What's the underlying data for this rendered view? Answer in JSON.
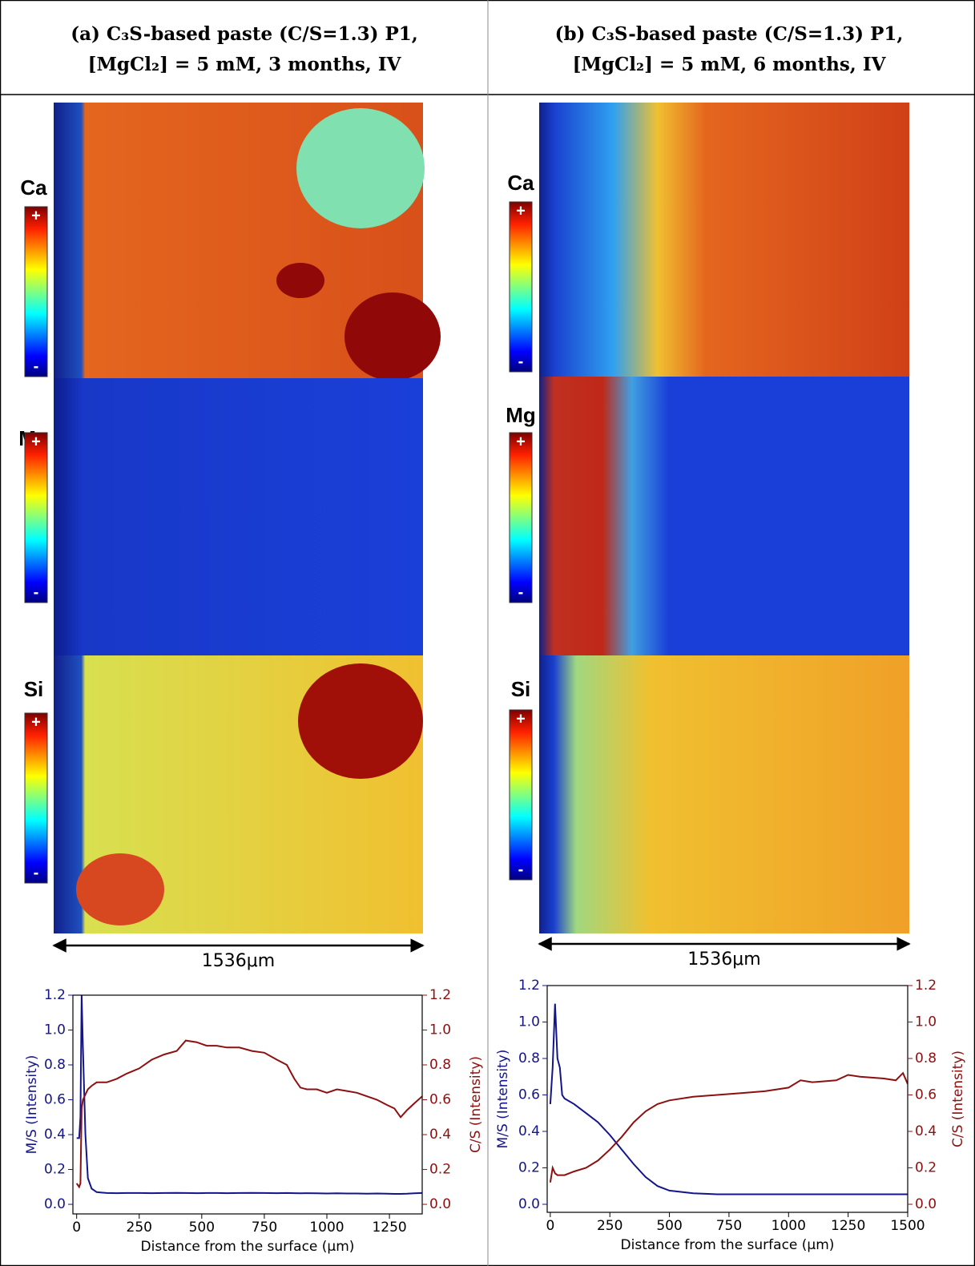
{
  "panels": [
    {
      "header": [
        "(a) C₃S-based paste (C/S=1.3) P1,",
        "[MgCl₂] = 5 mM,  3 months, IV"
      ],
      "maps": [
        {
          "element": "Ca",
          "max": "+",
          "min": "-"
        },
        {
          "element": "Mg",
          "max": "+",
          "min": "-"
        },
        {
          "element": "Si",
          "max": "+",
          "min": "-"
        }
      ],
      "scale_bar": "1536μm"
    },
    {
      "header": [
        "(b) C₃S-based paste (C/S=1.3) P1,",
        "[MgCl₂] = 5 mM,  6 months, IV"
      ],
      "maps": [
        {
          "element": "Ca",
          "max": "+",
          "min": "-"
        },
        {
          "element": "Mg",
          "max": "+",
          "min": "-"
        },
        {
          "element": "Si",
          "max": "+",
          "min": "-"
        }
      ],
      "scale_bar": "1536μm"
    }
  ],
  "chart_data": [
    {
      "type": "line",
      "xlabel": "Distance from the surface (μm)",
      "ylabel": "M/S (Intensity)",
      "y2label": "C/S (Intensity)",
      "x": [
        0,
        10,
        15,
        20,
        25,
        35,
        45,
        60,
        80,
        120,
        160,
        200,
        250,
        300,
        350,
        400,
        436,
        480,
        520,
        560,
        600,
        650,
        700,
        750,
        800,
        840,
        870,
        894,
        920,
        960,
        1000,
        1040,
        1080,
        1120,
        1160,
        1200,
        1240,
        1270,
        1295,
        1320,
        1350,
        1381
      ],
      "series": [
        {
          "color": "#14148c",
          "values": [
            0.38,
            0.38,
            0.5,
            1.2,
            0.9,
            0.4,
            0.15,
            0.09,
            0.07,
            0.065,
            0.064,
            0.065,
            0.065,
            0.064,
            0.065,
            0.066,
            0.065,
            0.064,
            0.065,
            0.065,
            0.064,
            0.065,
            0.066,
            0.065,
            0.064,
            0.065,
            0.064,
            0.063,
            0.064,
            0.063,
            0.062,
            0.063,
            0.062,
            0.062,
            0.061,
            0.062,
            0.061,
            0.06,
            0.06,
            0.061,
            0.063,
            0.065
          ]
        },
        {
          "color": "#8c1010",
          "axis": "y2",
          "values": [
            0.12,
            0.1,
            0.12,
            0.55,
            0.6,
            0.63,
            0.66,
            0.68,
            0.7,
            0.7,
            0.72,
            0.75,
            0.78,
            0.83,
            0.86,
            0.88,
            0.94,
            0.93,
            0.91,
            0.91,
            0.9,
            0.9,
            0.88,
            0.87,
            0.83,
            0.8,
            0.72,
            0.67,
            0.66,
            0.66,
            0.64,
            0.66,
            0.65,
            0.64,
            0.62,
            0.6,
            0.57,
            0.55,
            0.5,
            0.54,
            0.58,
            0.62
          ]
        }
      ],
      "xlim": [
        -15,
        1381
      ],
      "ylim": [
        -0.055,
        1.2
      ],
      "y2lim": [
        -0.055,
        1.2
      ],
      "xticks": [
        0,
        250,
        500,
        750,
        1000,
        1250
      ],
      "yticks": [
        {
          "value": 0,
          "label": "0.0"
        },
        0.2,
        0.4,
        0.6,
        0.8,
        {
          "value": 1,
          "label": "1.0"
        },
        1.2
      ],
      "y2ticks": [
        {
          "value": 0,
          "label": "0.0"
        },
        0.2,
        0.4,
        0.6,
        0.8,
        {
          "value": 1,
          "label": "1.0"
        },
        1.2
      ]
    },
    {
      "type": "line",
      "xlabel": "Distance from the surface (μm)",
      "ylabel": "M/S (Intensity)",
      "y2label": "C/S (Intensity)",
      "x": [
        0,
        10,
        20,
        30,
        40,
        50,
        60,
        100,
        150,
        200,
        250,
        300,
        350,
        400,
        450,
        500,
        600,
        700,
        800,
        900,
        1000,
        1050,
        1100,
        1200,
        1250,
        1300,
        1400,
        1450,
        1480,
        1500
      ],
      "series": [
        {
          "color": "#14148c",
          "values": [
            0.55,
            0.75,
            1.1,
            0.8,
            0.75,
            0.6,
            0.58,
            0.55,
            0.5,
            0.45,
            0.38,
            0.3,
            0.22,
            0.15,
            0.1,
            0.075,
            0.06,
            0.055,
            0.055,
            0.055,
            0.055,
            0.055,
            0.055,
            0.055,
            0.055,
            0.055,
            0.055,
            0.055,
            0.055,
            0.055
          ]
        },
        {
          "color": "#8c1010",
          "axis": "y2",
          "values": [
            0.12,
            0.2,
            0.17,
            0.16,
            0.16,
            0.16,
            0.16,
            0.18,
            0.2,
            0.24,
            0.3,
            0.37,
            0.45,
            0.51,
            0.55,
            0.57,
            0.59,
            0.6,
            0.61,
            0.62,
            0.64,
            0.68,
            0.67,
            0.68,
            0.71,
            0.7,
            0.69,
            0.68,
            0.72,
            0.66
          ]
        }
      ],
      "xlim": [
        -13,
        1500
      ],
      "ylim": [
        -0.044,
        1.2
      ],
      "y2lim": [
        -0.044,
        1.2
      ],
      "xticks": [
        0,
        250,
        500,
        750,
        1000,
        1250,
        1500
      ],
      "yticks": [
        {
          "value": 0,
          "label": "0.0"
        },
        0.2,
        0.4,
        0.6,
        0.8,
        {
          "value": 1,
          "label": "1.0"
        },
        1.2
      ],
      "y2ticks": [
        {
          "value": 0,
          "label": "0.0"
        },
        0.2,
        0.4,
        0.6,
        0.8,
        {
          "value": 1,
          "label": "1.0"
        },
        1.2
      ]
    }
  ]
}
